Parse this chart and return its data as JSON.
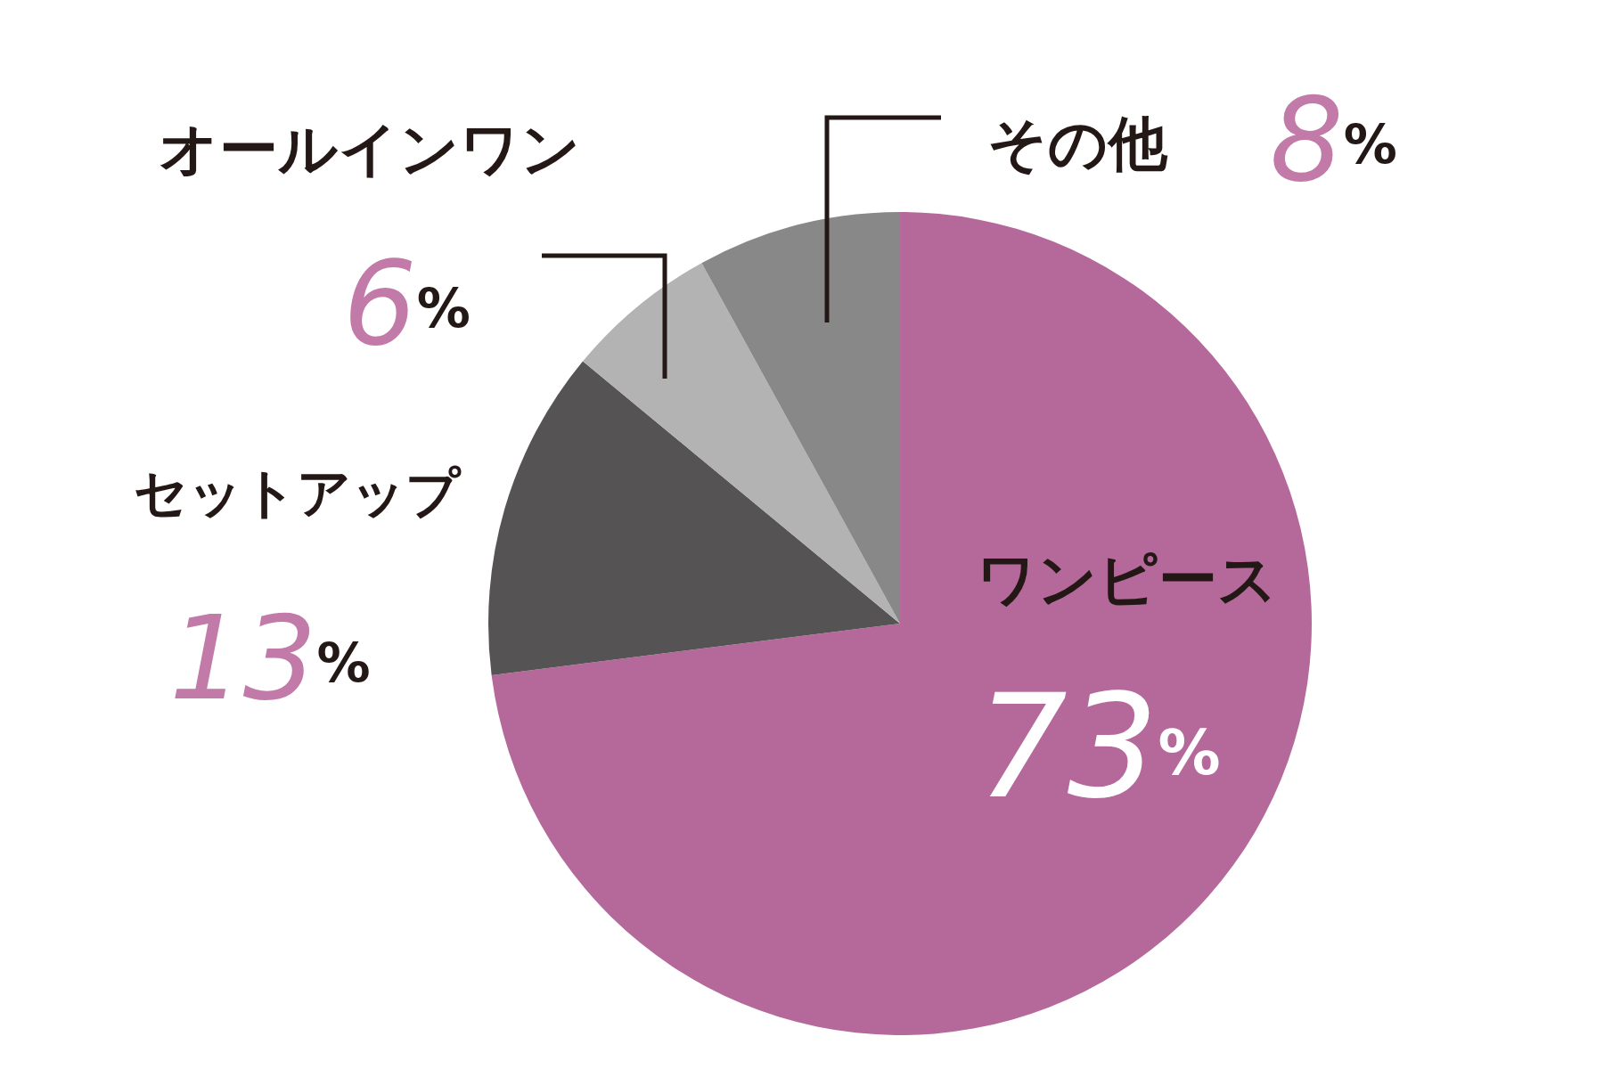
{
  "chart_data": {
    "type": "pie",
    "categories": [
      "ワンピース",
      "セットアップ",
      "オールインワン",
      "その他"
    ],
    "values": [
      73,
      13,
      6,
      8
    ],
    "colors": [
      "#b5699a",
      "#555354",
      "#b3b3b3",
      "#888888"
    ],
    "value_labels": [
      "73%",
      "13%",
      "6%",
      "8%"
    ]
  }
}
